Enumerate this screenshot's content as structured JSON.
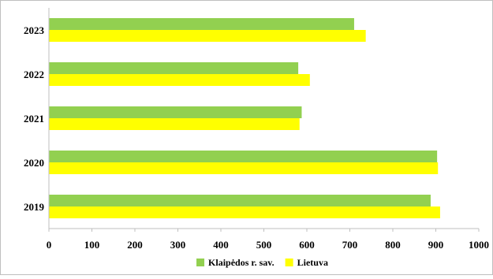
{
  "chart_data": {
    "type": "bar",
    "orientation": "horizontal",
    "title": "",
    "xlabel": "",
    "ylabel": "",
    "categories": [
      "2019",
      "2020",
      "2021",
      "2022",
      "2023"
    ],
    "series": [
      {
        "name": "Klaipėdos r. sav.",
        "color": "#92d050",
        "values": [
          888,
          903,
          588,
          580,
          710
        ]
      },
      {
        "name": "Lietuva",
        "color": "#ffff00",
        "values": [
          910,
          905,
          583,
          607,
          737
        ]
      }
    ],
    "xlim": [
      0,
      1000
    ],
    "xticks": [
      0,
      100,
      200,
      300,
      400,
      500,
      600,
      700,
      800,
      900,
      1000
    ],
    "grid": false,
    "legend_position": "bottom"
  }
}
